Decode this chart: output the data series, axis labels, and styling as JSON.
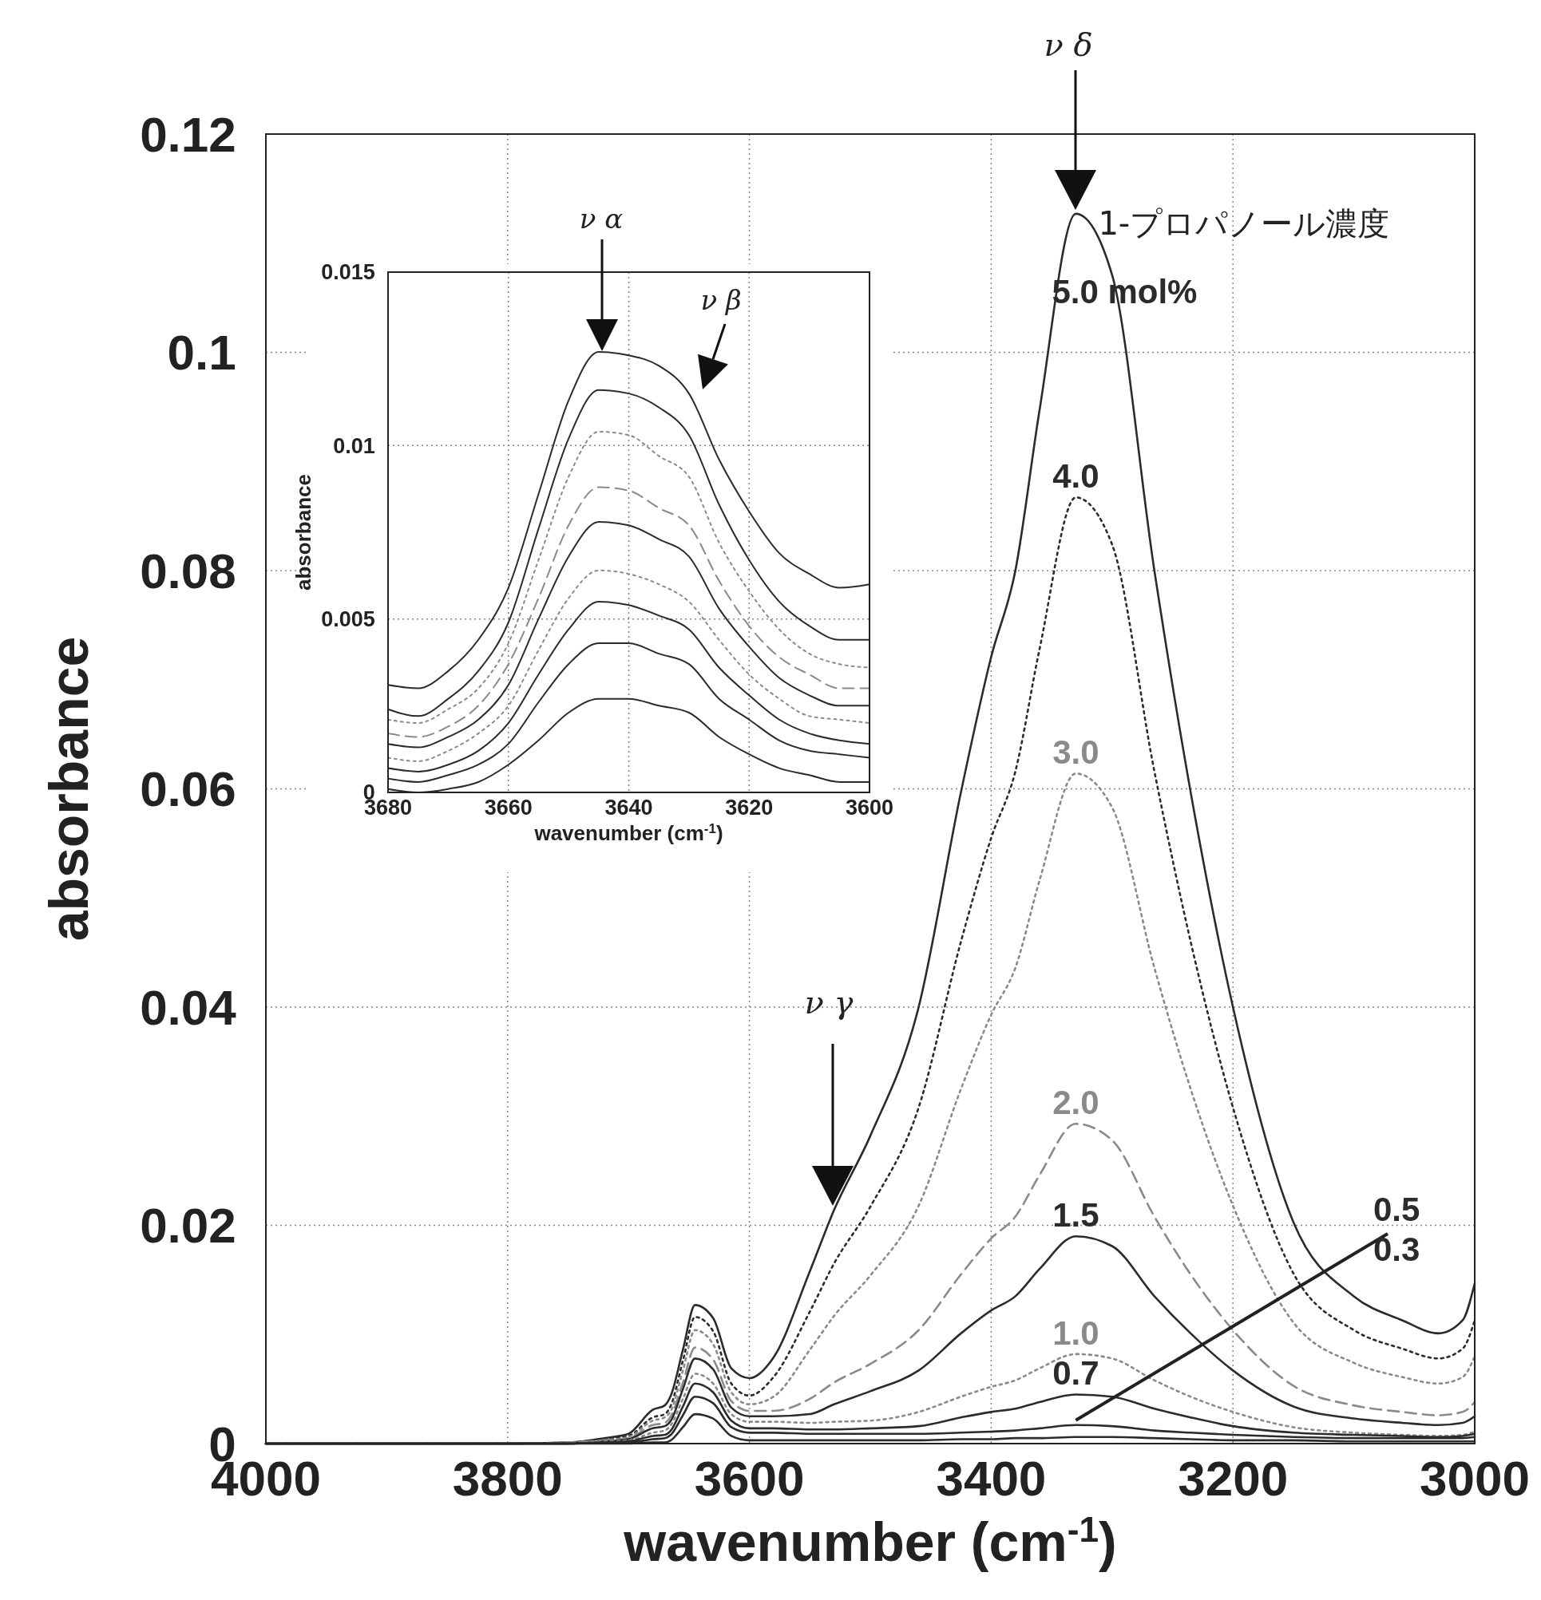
{
  "chart_data": [
    {
      "type": "line",
      "xlabel": "wavenumber (cm$^{-1}$)",
      "ylabel": "absorbance",
      "xlim": [
        4000,
        3000
      ],
      "xticks": [
        4000,
        3800,
        3600,
        3400,
        3200,
        3000
      ],
      "ylim": [
        0,
        0.12
      ],
      "yticks": [
        0,
        0.02,
        0.04,
        0.06,
        0.08,
        0.1,
        0.12
      ],
      "grid": true,
      "annotations": [
        "1-プロパノール濃度",
        "ν δ",
        "ν γ"
      ],
      "x": [
        4000,
        3800,
        3750,
        3720,
        3700,
        3680,
        3670,
        3665,
        3655,
        3645,
        3630,
        3615,
        3600,
        3580,
        3550,
        3530,
        3500,
        3460,
        3425,
        3400,
        3380,
        3360,
        3330,
        3300,
        3265,
        3235,
        3200,
        3150,
        3100,
        3060,
        3030,
        3010,
        3000
      ],
      "series": [
        {
          "name": "5.0 mol%",
          "color": "#2b2b2b",
          "line_style": "solid",
          "values": [
            0,
            0,
            0.0001,
            0.0005,
            0.0009,
            0.0031,
            0.0035,
            0.0044,
            0.0086,
            0.0127,
            0.0115,
            0.0069,
            0.006,
            0.0079,
            0.0158,
            0.0214,
            0.0282,
            0.04,
            0.0597,
            0.0721,
            0.08,
            0.0947,
            0.1127,
            0.1071,
            0.08,
            0.0597,
            0.04,
            0.0203,
            0.0135,
            0.0113,
            0.0101,
            0.0113,
            0.0147
          ]
        },
        {
          "name": "4.0",
          "color": "#2b2b2b",
          "line_style": "dotted",
          "values": [
            0,
            0,
            0.0001,
            0.0004,
            0.0007,
            0.0024,
            0.0027,
            0.0035,
            0.0076,
            0.0116,
            0.0103,
            0.0055,
            0.0044,
            0.0061,
            0.0121,
            0.0165,
            0.0217,
            0.0308,
            0.046,
            0.0555,
            0.0616,
            0.0728,
            0.0867,
            0.0824,
            0.0616,
            0.046,
            0.0308,
            0.0156,
            0.0104,
            0.0087,
            0.0078,
            0.0087,
            0.0113
          ]
        },
        {
          "name": "3.0",
          "color": "#8a8a8a",
          "line_style": "dotted",
          "values": [
            0,
            0,
            0.0001,
            0.0003,
            0.0006,
            0.0021,
            0.0024,
            0.003,
            0.0067,
            0.0104,
            0.0091,
            0.0047,
            0.0036,
            0.0043,
            0.0086,
            0.0117,
            0.0154,
            0.0218,
            0.0325,
            0.0393,
            0.0436,
            0.0516,
            0.0614,
            0.0583,
            0.0436,
            0.0325,
            0.0218,
            0.0111,
            0.0074,
            0.0061,
            0.0055,
            0.0061,
            0.008
          ]
        },
        {
          "name": "2.0",
          "color": "#8a8a8a",
          "line_style": "dashed",
          "values": [
            0,
            0,
            0.0001,
            0.0003,
            0.0005,
            0.0017,
            0.0019,
            0.0025,
            0.0056,
            0.0088,
            0.0077,
            0.0039,
            0.003,
            0.003,
            0.0041,
            0.0056,
            0.0073,
            0.0104,
            0.0155,
            0.0188,
            0.0208,
            0.0246,
            0.0293,
            0.0278,
            0.0208,
            0.0155,
            0.0104,
            0.0053,
            0.0035,
            0.0029,
            0.0026,
            0.0029,
            0.0038
          ]
        },
        {
          "name": "1.5",
          "color": "#2b2b2b",
          "line_style": "solid",
          "values": [
            0,
            0,
            0,
            0.0002,
            0.0004,
            0.0014,
            0.0016,
            0.0021,
            0.005,
            0.0078,
            0.0068,
            0.0033,
            0.0025,
            0.0025,
            0.0027,
            0.0036,
            0.0048,
            0.0067,
            0.0101,
            0.0122,
            0.0135,
            0.016,
            0.019,
            0.0181,
            0.0135,
            0.0101,
            0.0067,
            0.0034,
            0.0023,
            0.0019,
            0.0017,
            0.0019,
            0.0025
          ]
        },
        {
          "name": "1.0",
          "color": "#8a8a8a",
          "line_style": "dotted",
          "values": [
            0,
            0,
            0,
            0.0002,
            0.0003,
            0.001,
            0.0012,
            0.0017,
            0.0041,
            0.0064,
            0.0055,
            0.0027,
            0.002,
            0.002,
            0.0019,
            0.002,
            0.0021,
            0.0029,
            0.0043,
            0.0052,
            0.0058,
            0.0069,
            0.0082,
            0.0078,
            0.0058,
            0.0043,
            0.0029,
            0.0015,
            0.001,
            0.0008,
            0.0007,
            0.0008,
            0.0011
          ]
        },
        {
          "name": "0.7",
          "color": "#2b2b2b",
          "line_style": "solid",
          "values": [
            0,
            0,
            0,
            0.0001,
            0.0002,
            0.0007,
            0.0008,
            0.0012,
            0.0034,
            0.0055,
            0.0047,
            0.0021,
            0.0014,
            0.0014,
            0.0013,
            0.0013,
            0.0014,
            0.0016,
            0.0024,
            0.0029,
            0.0032,
            0.0038,
            0.0045,
            0.0043,
            0.0032,
            0.0024,
            0.0016,
            0.001,
            0.0008,
            0.0007,
            0.0006,
            0.0007,
            0.0009
          ]
        },
        {
          "name": "0.5",
          "color": "#2b2b2b",
          "line_style": "solid",
          "values": [
            0,
            0,
            0,
            0.0001,
            0.0001,
            0.0004,
            0.0005,
            0.0008,
            0.0026,
            0.0043,
            0.0037,
            0.0015,
            0.001,
            0.001,
            0.0009,
            0.0009,
            0.0009,
            0.0009,
            0.001,
            0.0011,
            0.0012,
            0.0014,
            0.0017,
            0.0016,
            0.0012,
            0.001,
            0.0008,
            0.0006,
            0.0005,
            0.0005,
            0.0005,
            0.0005,
            0.0006
          ]
        },
        {
          "name": "0.3",
          "color": "#2b2b2b",
          "line_style": "solid",
          "values": [
            0,
            0,
            0,
            0,
            0,
            0.0001,
            0.0001,
            0.0003,
            0.0015,
            0.0027,
            0.0023,
            0.0007,
            0.0003,
            0.0003,
            0.0003,
            0.0003,
            0.0003,
            0.0003,
            0.0004,
            0.0004,
            0.0005,
            0.0005,
            0.0006,
            0.0006,
            0.0005,
            0.0004,
            0.0003,
            0.0003,
            0.0002,
            0.0002,
            0.0002,
            0.0002,
            0.0002
          ]
        }
      ]
    },
    {
      "type": "line",
      "xlabel": "wavenumber (cm$^{-1}$)",
      "ylabel": "absorbance",
      "xlim": [
        3680,
        3600
      ],
      "xticks": [
        3680,
        3660,
        3640,
        3620,
        3600
      ],
      "ylim": [
        0,
        0.015
      ],
      "yticks": [
        0,
        0.005,
        0.01,
        0.015
      ],
      "grid": true,
      "annotations": [
        "ν α",
        "ν β"
      ],
      "x": [
        3680,
        3675,
        3670,
        3665,
        3660,
        3655,
        3650,
        3645,
        3640,
        3635,
        3630,
        3625,
        3620,
        3615,
        3610,
        3605,
        3600
      ],
      "series": [
        {
          "color": "#2b2b2b",
          "line_style": "solid",
          "values": [
            0.0031,
            0.003,
            0.0035,
            0.0044,
            0.0059,
            0.0086,
            0.0113,
            0.0127,
            0.0126,
            0.0123,
            0.0115,
            0.0096,
            0.0081,
            0.0069,
            0.0063,
            0.0059,
            0.006
          ]
        },
        {
          "color": "#2b2b2b",
          "line_style": "solid",
          "values": [
            0.0024,
            0.0022,
            0.0027,
            0.0035,
            0.0049,
            0.0076,
            0.0102,
            0.0116,
            0.0115,
            0.0111,
            0.0103,
            0.0083,
            0.0067,
            0.0055,
            0.0048,
            0.0044,
            0.0044
          ]
        },
        {
          "color": "#8a8a8a",
          "line_style": "dotted",
          "values": [
            0.0021,
            0.002,
            0.0024,
            0.003,
            0.0043,
            0.0067,
            0.0091,
            0.0104,
            0.0103,
            0.0097,
            0.0091,
            0.0072,
            0.0058,
            0.0047,
            0.004,
            0.0037,
            0.0036
          ]
        },
        {
          "color": "#8a8a8a",
          "line_style": "dashed",
          "values": [
            0.0017,
            0.0016,
            0.0019,
            0.0025,
            0.0037,
            0.0056,
            0.0077,
            0.0088,
            0.0087,
            0.0082,
            0.0077,
            0.0061,
            0.0048,
            0.0039,
            0.0034,
            0.003,
            0.003
          ]
        },
        {
          "color": "#2b2b2b",
          "line_style": "solid",
          "values": [
            0.0014,
            0.0013,
            0.0016,
            0.0021,
            0.0031,
            0.005,
            0.0068,
            0.0078,
            0.0077,
            0.0073,
            0.0068,
            0.0053,
            0.0042,
            0.0033,
            0.0028,
            0.0025,
            0.0025
          ]
        },
        {
          "color": "#8a8a8a",
          "line_style": "dotted",
          "values": [
            0.001,
            0.0009,
            0.0012,
            0.0017,
            0.0025,
            0.0041,
            0.0056,
            0.0064,
            0.0063,
            0.006,
            0.0055,
            0.0044,
            0.0034,
            0.0027,
            0.0022,
            0.0021,
            0.002
          ]
        },
        {
          "color": "#2b2b2b",
          "line_style": "solid",
          "values": [
            0.0007,
            0.0006,
            0.0008,
            0.0012,
            0.002,
            0.0034,
            0.0047,
            0.0055,
            0.0054,
            0.0051,
            0.0047,
            0.0036,
            0.0028,
            0.0021,
            0.0017,
            0.0015,
            0.0014
          ]
        },
        {
          "color": "#2b2b2b",
          "line_style": "solid",
          "values": [
            0.0004,
            0.0003,
            0.0005,
            0.0008,
            0.0014,
            0.0026,
            0.0037,
            0.0043,
            0.0043,
            0.004,
            0.0037,
            0.0027,
            0.0021,
            0.0015,
            0.0012,
            0.0011,
            0.001
          ]
        },
        {
          "color": "#2b2b2b",
          "line_style": "solid",
          "values": [
            0.0001,
            0,
            0.0001,
            0.0003,
            0.0008,
            0.0015,
            0.0023,
            0.0027,
            0.0027,
            0.0025,
            0.0023,
            0.0016,
            0.0011,
            0.0007,
            0.0005,
            0.0003,
            0.0003
          ]
        }
      ]
    }
  ]
}
